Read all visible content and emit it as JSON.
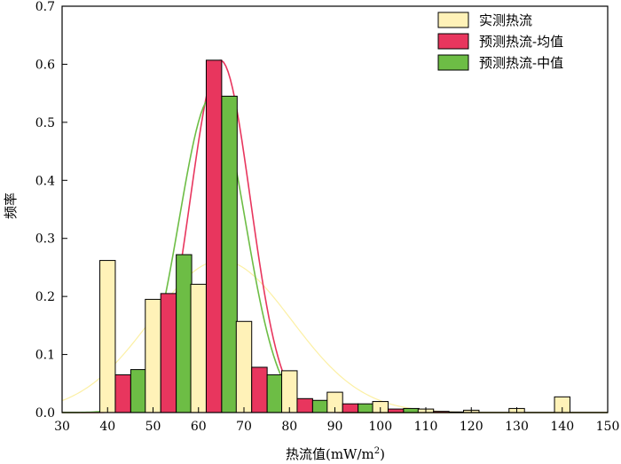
{
  "chart_data": {
    "type": "bar",
    "xlabel": "热流值(mW/m",
    "xlabel_sup": "2",
    "xlabel_end": ")",
    "ylabel": "频率",
    "xlim": [
      30,
      150
    ],
    "ylim": [
      0,
      0.7
    ],
    "x_ticks": [
      30,
      40,
      50,
      60,
      70,
      80,
      90,
      100,
      110,
      120,
      130,
      140,
      150
    ],
    "y_ticks": [
      0.0,
      0.1,
      0.2,
      0.3,
      0.4,
      0.5,
      0.6,
      0.7
    ],
    "bin_centers": [
      45,
      55,
      65,
      75,
      85,
      95,
      105,
      115,
      125,
      135,
      145
    ],
    "legend_position": "top-right",
    "series": [
      {
        "name": "实测热流",
        "color": "#fff2b8",
        "values": [
          0.262,
          0.195,
          0.221,
          0.157,
          0.072,
          0.035,
          0.019,
          0.006,
          0.004,
          0.007,
          0.027
        ],
        "curve": {
          "mean": 65,
          "sd": 15.5,
          "color": "#fcf0a4"
        }
      },
      {
        "name": "预测热流-均值",
        "color": "#e8365e",
        "values": [
          0.065,
          0.205,
          0.607,
          0.078,
          0.024,
          0.015,
          0.006,
          0.002,
          0.0,
          0.0,
          0.0
        ],
        "curve": {
          "mean": 64.8,
          "sd": 6.6,
          "color": "#e8365e"
        }
      },
      {
        "name": "预测热流-中值",
        "color": "#6dbd45",
        "values": [
          0.074,
          0.272,
          0.545,
          0.065,
          0.021,
          0.015,
          0.007,
          0.001,
          0.0,
          0.0,
          0.0
        ],
        "curve": {
          "mean": 63,
          "sd": 7.3,
          "color": "#6dbd45"
        }
      }
    ]
  }
}
